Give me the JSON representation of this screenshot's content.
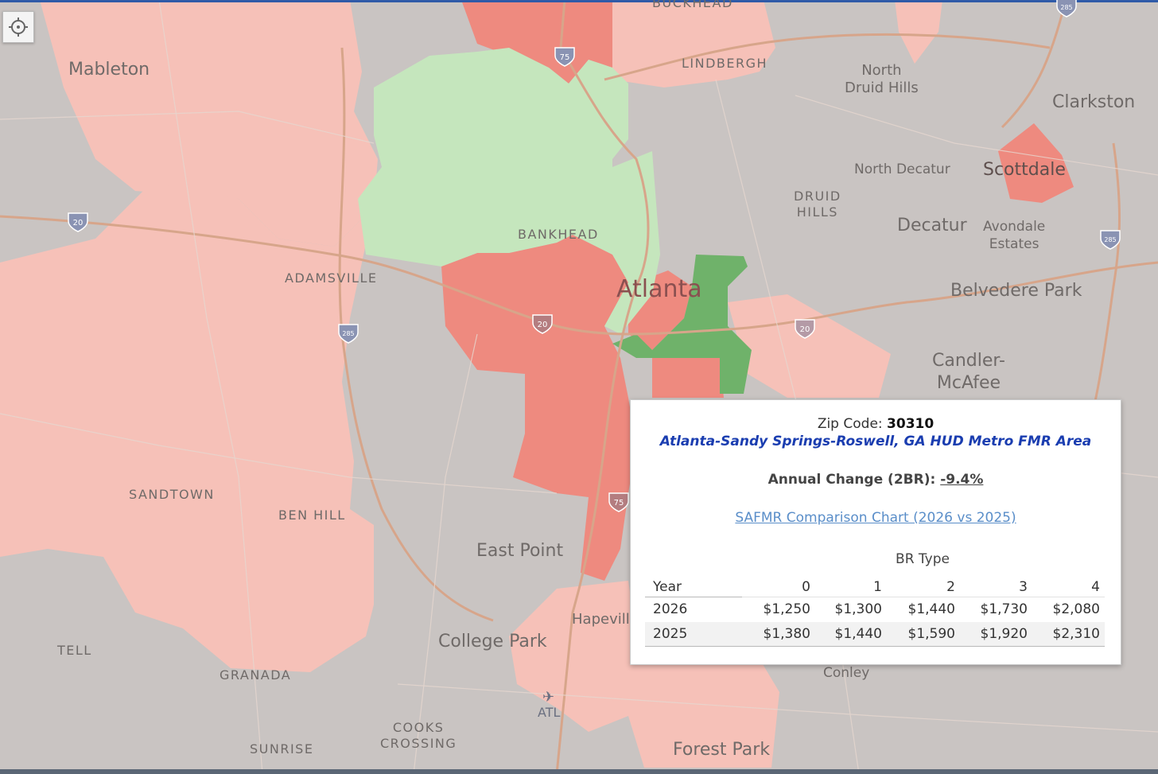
{
  "map": {
    "place_labels": {
      "mableton": "Mableton",
      "lindbergh": "LINDBERGH",
      "north_druid_hills": "North\nDruid Hills",
      "clarkston": "Clarkston",
      "north_decatur": "North Decatur",
      "scottdale": "Scottdale",
      "druid_hills": "DRUID\nHILLS",
      "decatur": "Decatur",
      "avondale_estates": "Avondale\nEstates",
      "bankhead": "BANKHEAD",
      "adamsville": "ADAMSVILLE",
      "atlanta": "Atlanta",
      "belvedere_park": "Belvedere Park",
      "candler_mcafee": "Candler-\nMcAfee",
      "sandtown": "SANDTOWN",
      "ben_hill": "BEN HILL",
      "east_point": "East Point",
      "hapeville": "Hapeville",
      "college_park": "College Park",
      "tell": "TELL",
      "granada": "GRANADA",
      "conley": "Conley",
      "atl": "ATL",
      "cooks_crossing": "COOKS\nCROSSING",
      "sunrise": "SUNRISE",
      "forest_park": "Forest Park",
      "buckhead": "BUCKHEAD"
    },
    "shields": {
      "i75_north": "75",
      "i75_south": "75",
      "i20_west": "20",
      "i20_mid": "20",
      "i20_east": "20",
      "i285_west": "285",
      "i285_east": "285",
      "i285_ne": "285"
    },
    "colors": {
      "base": "#c9c4c2",
      "light_red": "#f6c1b8",
      "red": "#ee8a7f",
      "light_green": "#c5e6bd",
      "green": "#6fb26a",
      "road": "#d9a98a"
    }
  },
  "tooltip": {
    "zip_label": "Zip Code:",
    "zip_value": "30310",
    "area": "Atlanta-Sandy Springs-Roswell, GA HUD Metro FMR Area",
    "change_label": "Annual Change (2BR):",
    "change_value": "-9.4%",
    "link": "SAFMR Comparison Chart (2026 vs 2025)",
    "table": {
      "group_header": "BR Type",
      "year_header": "Year",
      "columns": [
        "0",
        "1",
        "2",
        "3",
        "4"
      ],
      "rows": [
        {
          "year": "2026",
          "values": [
            "$1,250",
            "$1,300",
            "$1,440",
            "$1,730",
            "$2,080"
          ]
        },
        {
          "year": "2025",
          "values": [
            "$1,380",
            "$1,440",
            "$1,590",
            "$1,920",
            "$2,310"
          ]
        }
      ]
    }
  }
}
